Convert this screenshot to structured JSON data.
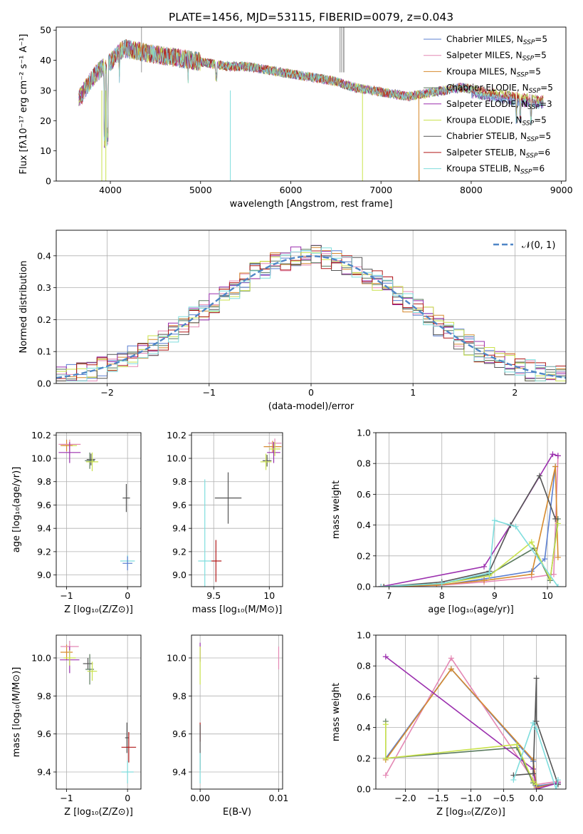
{
  "figure": {
    "title": "PLATE=1456, MJD=53115, FIBERID=0079, z=0.043"
  },
  "colors": [
    "#5b7fd0",
    "#e488b4",
    "#d68a2e",
    "#5a7a5e",
    "#9b2fae",
    "#c9e24c",
    "#555555",
    "#b01818",
    "#7fdddd"
  ],
  "chart_data": [
    {
      "id": "spectrum",
      "type": "line",
      "xlabel": "wavelength [Angstrom, rest frame]",
      "ylabel": "Flux [fλ10⁻¹⁷ erg cm⁻² s⁻¹ A⁻¹]",
      "xlim": [
        3400,
        9050
      ],
      "ylim": [
        0,
        51
      ],
      "xticks": [
        4000,
        5000,
        6000,
        7000,
        8000,
        9000
      ],
      "yticks": [
        0,
        10,
        20,
        30,
        40,
        50
      ],
      "grid": false,
      "legend_position": "right",
      "legend": [
        {
          "base": "Chabrier MILES, N",
          "sub": "SSP",
          "suffix": "=5"
        },
        {
          "base": "Salpeter MILES, N",
          "sub": "SSP",
          "suffix": "=5"
        },
        {
          "base": "Kroupa MILES, N",
          "sub": "SSP",
          "suffix": "=5"
        },
        {
          "base": "Chabrier ELODIE, N",
          "sub": "SSP",
          "suffix": "=5"
        },
        {
          "base": "Salpeter ELODIE, N",
          "sub": "SSP",
          "suffix": "=3"
        },
        {
          "base": "Kroupa ELODIE, N",
          "sub": "SSP",
          "suffix": "=5"
        },
        {
          "base": "Chabrier STELIB, N",
          "sub": "SSP",
          "suffix": "=5"
        },
        {
          "base": "Salpeter STELIB, N",
          "sub": "SSP",
          "suffix": "=6"
        },
        {
          "base": "Kroupa STELIB, N",
          "sub": "SSP",
          "suffix": "=6"
        }
      ],
      "continuum_x": [
        3650,
        3750,
        3850,
        3950,
        4050,
        4150,
        4300,
        4500,
        4700,
        4900,
        5100,
        5300,
        5500,
        5700,
        5900,
        6100,
        6300,
        6500,
        6700,
        6900,
        7100,
        7300,
        7500,
        7700,
        7900,
        8100,
        8300,
        8500,
        8700,
        8800
      ],
      "continuum_y": [
        27,
        32,
        36,
        38,
        41,
        44,
        43,
        42,
        41,
        40,
        39,
        38,
        38,
        37,
        36,
        35,
        34,
        33,
        31,
        30,
        29,
        28,
        29,
        30,
        31,
        30,
        29,
        28,
        27,
        27
      ]
    },
    {
      "id": "residuals",
      "type": "step",
      "xlabel": "(data-model)/error",
      "ylabel": "Normed distribution",
      "xlim": [
        -2.5,
        2.5
      ],
      "ylim": [
        0,
        0.48
      ],
      "xticks": [
        -2,
        -1,
        0,
        1,
        2
      ],
      "yticks": [
        0.0,
        0.1,
        0.2,
        0.3,
        0.4
      ],
      "grid": true,
      "legend_position": "top-right",
      "reference": {
        "label": "𝒩(0, 1)",
        "mean": 0,
        "sigma": 1
      },
      "bin_width": 0.1
    },
    {
      "id": "age-vs-Z",
      "type": "errorbar",
      "xlabel": "Z [log₁₀(Z/Z⊙)]",
      "ylabel": "age  [log₁₀(age/yr)]",
      "xlim": [
        -1.17,
        0.22
      ],
      "ylim": [
        8.9,
        10.22
      ],
      "xticks": [
        -1,
        0
      ],
      "yticks": [
        9.0,
        9.2,
        9.4,
        9.6,
        9.8,
        10.0,
        10.2
      ],
      "points": [
        {
          "x": -0.95,
          "y": 10.11,
          "xerr": 0.12,
          "yerr": 0.05,
          "c": 5
        },
        {
          "x": -1.0,
          "y": 10.11,
          "xerr": 0.1,
          "yerr": 0.05,
          "c": 2
        },
        {
          "x": -0.95,
          "y": 10.12,
          "xerr": 0.18,
          "yerr": 0.04,
          "c": 1
        },
        {
          "x": -0.95,
          "y": 10.05,
          "xerr": 0.18,
          "yerr": 0.09,
          "c": 4
        },
        {
          "x": -0.6,
          "y": 9.99,
          "xerr": 0.07,
          "yerr": 0.05,
          "c": 6
        },
        {
          "x": -0.62,
          "y": 9.98,
          "xerr": 0.08,
          "yerr": 0.07,
          "c": 3
        },
        {
          "x": -0.58,
          "y": 9.97,
          "xerr": 0.1,
          "yerr": 0.08,
          "c": 5
        },
        {
          "x": -0.02,
          "y": 9.66,
          "xerr": 0.06,
          "yerr": 0.12,
          "c": 6
        },
        {
          "x": 0.0,
          "y": 9.12,
          "xerr": 0.12,
          "yerr": 0.05,
          "c": 8
        },
        {
          "x": 0.0,
          "y": 9.1,
          "xerr": 0.08,
          "yerr": 0.06,
          "c": 0
        }
      ]
    },
    {
      "id": "age-vs-mass",
      "type": "errorbar",
      "xlabel": "mass [log₁₀(M/M⊙)]",
      "ylabel": "",
      "xlim": [
        9.3,
        10.12
      ],
      "ylim": [
        8.9,
        10.22
      ],
      "xticks": [
        9.5,
        10.0
      ],
      "yticks": [
        9.0,
        9.2,
        9.4,
        9.6,
        9.8,
        10.0,
        10.2
      ],
      "points": [
        {
          "x": 10.03,
          "y": 10.1,
          "xerr": 0.08,
          "yerr": 0.05,
          "c": 2
        },
        {
          "x": 10.05,
          "y": 10.13,
          "xerr": 0.06,
          "yerr": 0.04,
          "c": 1
        },
        {
          "x": 10.04,
          "y": 10.05,
          "xerr": 0.06,
          "yerr": 0.09,
          "c": 4
        },
        {
          "x": 10.05,
          "y": 10.08,
          "xerr": 0.05,
          "yerr": 0.06,
          "c": 5
        },
        {
          "x": 9.98,
          "y": 9.98,
          "xerr": 0.04,
          "yerr": 0.05,
          "c": 6
        },
        {
          "x": 9.97,
          "y": 9.97,
          "xerr": 0.05,
          "yerr": 0.07,
          "c": 5
        },
        {
          "x": 9.63,
          "y": 9.66,
          "xerr": 0.12,
          "yerr": 0.22,
          "c": 6
        },
        {
          "x": 9.52,
          "y": 9.12,
          "xerr": 0.05,
          "yerr": 0.18,
          "c": 7
        },
        {
          "x": 9.42,
          "y": 9.12,
          "xerr": 0.06,
          "yerr": 0.7,
          "c": 8
        }
      ]
    },
    {
      "id": "weight-vs-age",
      "type": "line",
      "xlabel": "age  [log₁₀(age/yr)]",
      "ylabel": "mass weight",
      "xlim": [
        6.75,
        10.35
      ],
      "ylim": [
        0,
        1.0
      ],
      "xticks": [
        7,
        8,
        9,
        10
      ],
      "yticks": [
        0.0,
        0.2,
        0.4,
        0.6,
        0.8,
        1.0
      ],
      "grid": true,
      "series": [
        {
          "c": 0,
          "x": [
            6.85,
            8.0,
            8.8,
            9.7,
            9.95,
            10.15
          ],
          "y": [
            0.0,
            0.01,
            0.05,
            0.1,
            0.18,
            0.78
          ]
        },
        {
          "c": 1,
          "x": [
            6.85,
            8.0,
            8.8,
            9.7,
            10.12,
            10.2
          ],
          "y": [
            0.0,
            0.01,
            0.03,
            0.06,
            0.08,
            0.85
          ]
        },
        {
          "c": 2,
          "x": [
            6.85,
            7.9,
            8.8,
            9.7,
            10.15,
            10.2
          ],
          "y": [
            0.0,
            0.01,
            0.04,
            0.08,
            0.78,
            0.19
          ]
        },
        {
          "c": 3,
          "x": [
            6.9,
            8.0,
            8.9,
            9.75,
            10.05,
            10.2
          ],
          "y": [
            0.0,
            0.02,
            0.08,
            0.25,
            0.04,
            0.44
          ]
        },
        {
          "c": 4,
          "x": [
            6.85,
            8.8,
            9.3,
            10.1,
            10.2
          ],
          "y": [
            0.0,
            0.13,
            0.4,
            0.86,
            0.85
          ]
        },
        {
          "c": 5,
          "x": [
            6.9,
            8.0,
            8.9,
            9.7,
            10.05,
            10.2
          ],
          "y": [
            0.0,
            0.02,
            0.07,
            0.29,
            0.05,
            0.41
          ]
        },
        {
          "c": 6,
          "x": [
            6.9,
            8.0,
            8.9,
            9.3,
            9.85,
            10.15
          ],
          "y": [
            0.0,
            0.03,
            0.1,
            0.4,
            0.72,
            0.44
          ]
        },
        {
          "c": 8,
          "x": [
            6.85,
            8.0,
            8.9,
            9.0,
            9.4,
            10.2
          ],
          "y": [
            0.0,
            0.02,
            0.09,
            0.43,
            0.39,
            0.0
          ]
        }
      ]
    },
    {
      "id": "mass-vs-Z",
      "type": "errorbar",
      "xlabel": "Z [log₁₀(Z/Z⊙)]",
      "ylabel": "mass [log₁₀(M/M⊙)]",
      "xlim": [
        -1.17,
        0.22
      ],
      "ylim": [
        9.31,
        10.12
      ],
      "xticks": [
        -1,
        0
      ],
      "yticks": [
        9.4,
        9.6,
        9.8,
        10.0
      ],
      "points": [
        {
          "x": -1.0,
          "y": 10.03,
          "xerr": 0.1,
          "yerr": 0.04,
          "c": 2
        },
        {
          "x": -0.95,
          "y": 10.06,
          "xerr": 0.15,
          "yerr": 0.03,
          "c": 1
        },
        {
          "x": -0.95,
          "y": 9.99,
          "xerr": 0.16,
          "yerr": 0.07,
          "c": 4
        },
        {
          "x": -0.95,
          "y": 10.0,
          "xerr": 0.1,
          "yerr": 0.04,
          "c": 5
        },
        {
          "x": -0.65,
          "y": 9.97,
          "xerr": 0.08,
          "yerr": 0.03,
          "c": 6
        },
        {
          "x": -0.62,
          "y": 9.94,
          "xerr": 0.07,
          "yerr": 0.08,
          "c": 3
        },
        {
          "x": -0.58,
          "y": 9.93,
          "xerr": 0.08,
          "yerr": 0.05,
          "c": 5
        },
        {
          "x": -0.01,
          "y": 9.58,
          "xerr": 0.03,
          "yerr": 0.08,
          "c": 6
        },
        {
          "x": 0.02,
          "y": 9.53,
          "xerr": 0.12,
          "yerr": 0.08,
          "c": 7
        },
        {
          "x": 0.0,
          "y": 9.4,
          "xerr": 0.1,
          "yerr": 0.06,
          "c": 8
        }
      ]
    },
    {
      "id": "mass-vs-EBV",
      "type": "errorbar",
      "xlabel": "E(B-V)",
      "ylabel": "",
      "xlim": [
        -0.0011,
        0.0105
      ],
      "ylim": [
        9.31,
        10.12
      ],
      "xticks": [
        0.0,
        0.01
      ],
      "xticklabels": [
        "0.00",
        "0.01"
      ],
      "yticks": [
        9.4,
        9.6,
        9.8,
        10.0
      ],
      "points": [
        {
          "x": 0.0,
          "y": 10.03,
          "xerr": 0.0,
          "yerr": 0.05,
          "c": 4
        },
        {
          "x": 0.0,
          "y": 9.96,
          "xerr": 0.0,
          "yerr": 0.1,
          "c": 5
        },
        {
          "x": 0.01,
          "y": 10.0,
          "xerr": 0.0,
          "yerr": 0.06,
          "c": 1
        },
        {
          "x": 0.0,
          "y": 9.61,
          "xerr": 0.0,
          "yerr": 0.05,
          "c": 7
        },
        {
          "x": 0.0,
          "y": 9.53,
          "xerr": 0.0,
          "yerr": 0.12,
          "c": 6
        },
        {
          "x": 0.0,
          "y": 9.42,
          "xerr": 0.0,
          "yerr": 0.08,
          "c": 8
        }
      ]
    },
    {
      "id": "weight-vs-Z",
      "type": "line",
      "xlabel": "Z [log₁₀(Z/Z⊙)]",
      "ylabel": "mass weight",
      "xlim": [
        -2.45,
        0.45
      ],
      "ylim": [
        0,
        1.0
      ],
      "xticks": [
        -2.0,
        -1.5,
        -1.0,
        -0.5,
        0.0
      ],
      "yticks": [
        0.0,
        0.2,
        0.4,
        0.6,
        0.8,
        1.0
      ],
      "xticklabels": [
        "−2.0",
        "−1.5",
        "−1.0",
        "−0.5",
        "0.0"
      ],
      "grid": true,
      "series": [
        {
          "c": 0,
          "x": [
            -2.3,
            -1.3,
            -0.05,
            0.0,
            0.33
          ],
          "y": [
            0.2,
            0.78,
            0.18,
            0.02,
            0.04
          ]
        },
        {
          "c": 1,
          "x": [
            -2.3,
            -1.3,
            -0.05,
            0.0,
            0.33
          ],
          "y": [
            0.09,
            0.85,
            0.06,
            0.03,
            0.05
          ]
        },
        {
          "c": 2,
          "x": [
            -2.3,
            -1.3,
            -0.05,
            0.0,
            0.33
          ],
          "y": [
            0.19,
            0.78,
            0.19,
            0.01,
            0.04
          ]
        },
        {
          "c": 3,
          "x": [
            -2.3,
            -2.3,
            -0.3,
            -0.05,
            0.0
          ],
          "y": [
            0.44,
            0.2,
            0.27,
            0.04,
            0.02
          ]
        },
        {
          "c": 4,
          "x": [
            -2.3,
            -0.05,
            0.0,
            0.33
          ],
          "y": [
            0.86,
            0.13,
            0.0,
            0.04
          ]
        },
        {
          "c": 5,
          "x": [
            -2.3,
            -2.3,
            -0.3,
            -0.05,
            0.0
          ],
          "y": [
            0.42,
            0.2,
            0.29,
            0.05,
            0.03
          ]
        },
        {
          "c": 6,
          "x": [
            -0.35,
            -0.05,
            0.0,
            0.0,
            0.33
          ],
          "y": [
            0.09,
            0.1,
            0.72,
            0.44,
            0.03
          ]
        },
        {
          "c": 8,
          "x": [
            -0.35,
            -0.05,
            0.0,
            0.3,
            0.33
          ],
          "y": [
            0.06,
            0.43,
            0.39,
            0.0,
            0.06
          ]
        }
      ]
    }
  ]
}
